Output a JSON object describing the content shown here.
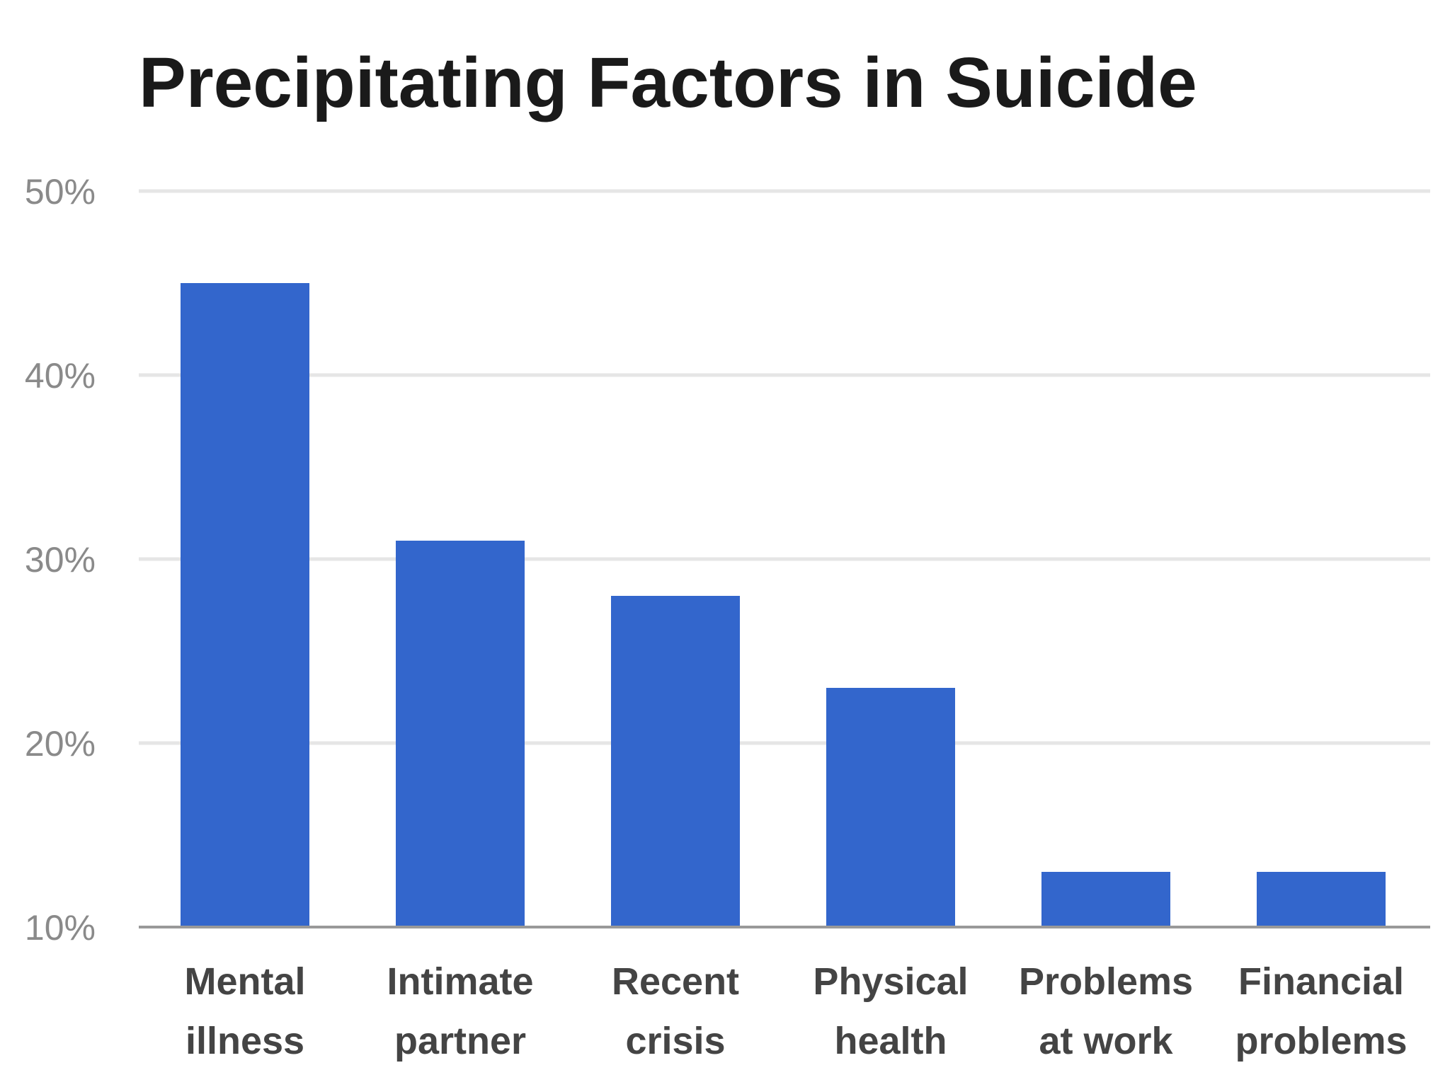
{
  "chart_data": {
    "type": "bar",
    "title": "Precipitating Factors in Suicide",
    "xlabel": "",
    "ylabel": "",
    "categories": [
      [
        "Mental",
        "illness"
      ],
      [
        "Intimate",
        "partner"
      ],
      [
        "Recent",
        "crisis"
      ],
      [
        "Physical",
        "health"
      ],
      [
        "Problems",
        "at work"
      ],
      [
        "Financial",
        "problems"
      ]
    ],
    "values": [
      45,
      31,
      28,
      23,
      13,
      13
    ],
    "ylim": [
      10,
      50
    ],
    "yticks": [
      10,
      20,
      30,
      40,
      50
    ],
    "ytick_labels": [
      "10%",
      "20%",
      "30%",
      "40%",
      "50%"
    ],
    "grid": true,
    "legend": "none",
    "colors": {
      "bar": "#3366cc",
      "grid": "#e6e6e6",
      "baseline": "#999999"
    }
  }
}
